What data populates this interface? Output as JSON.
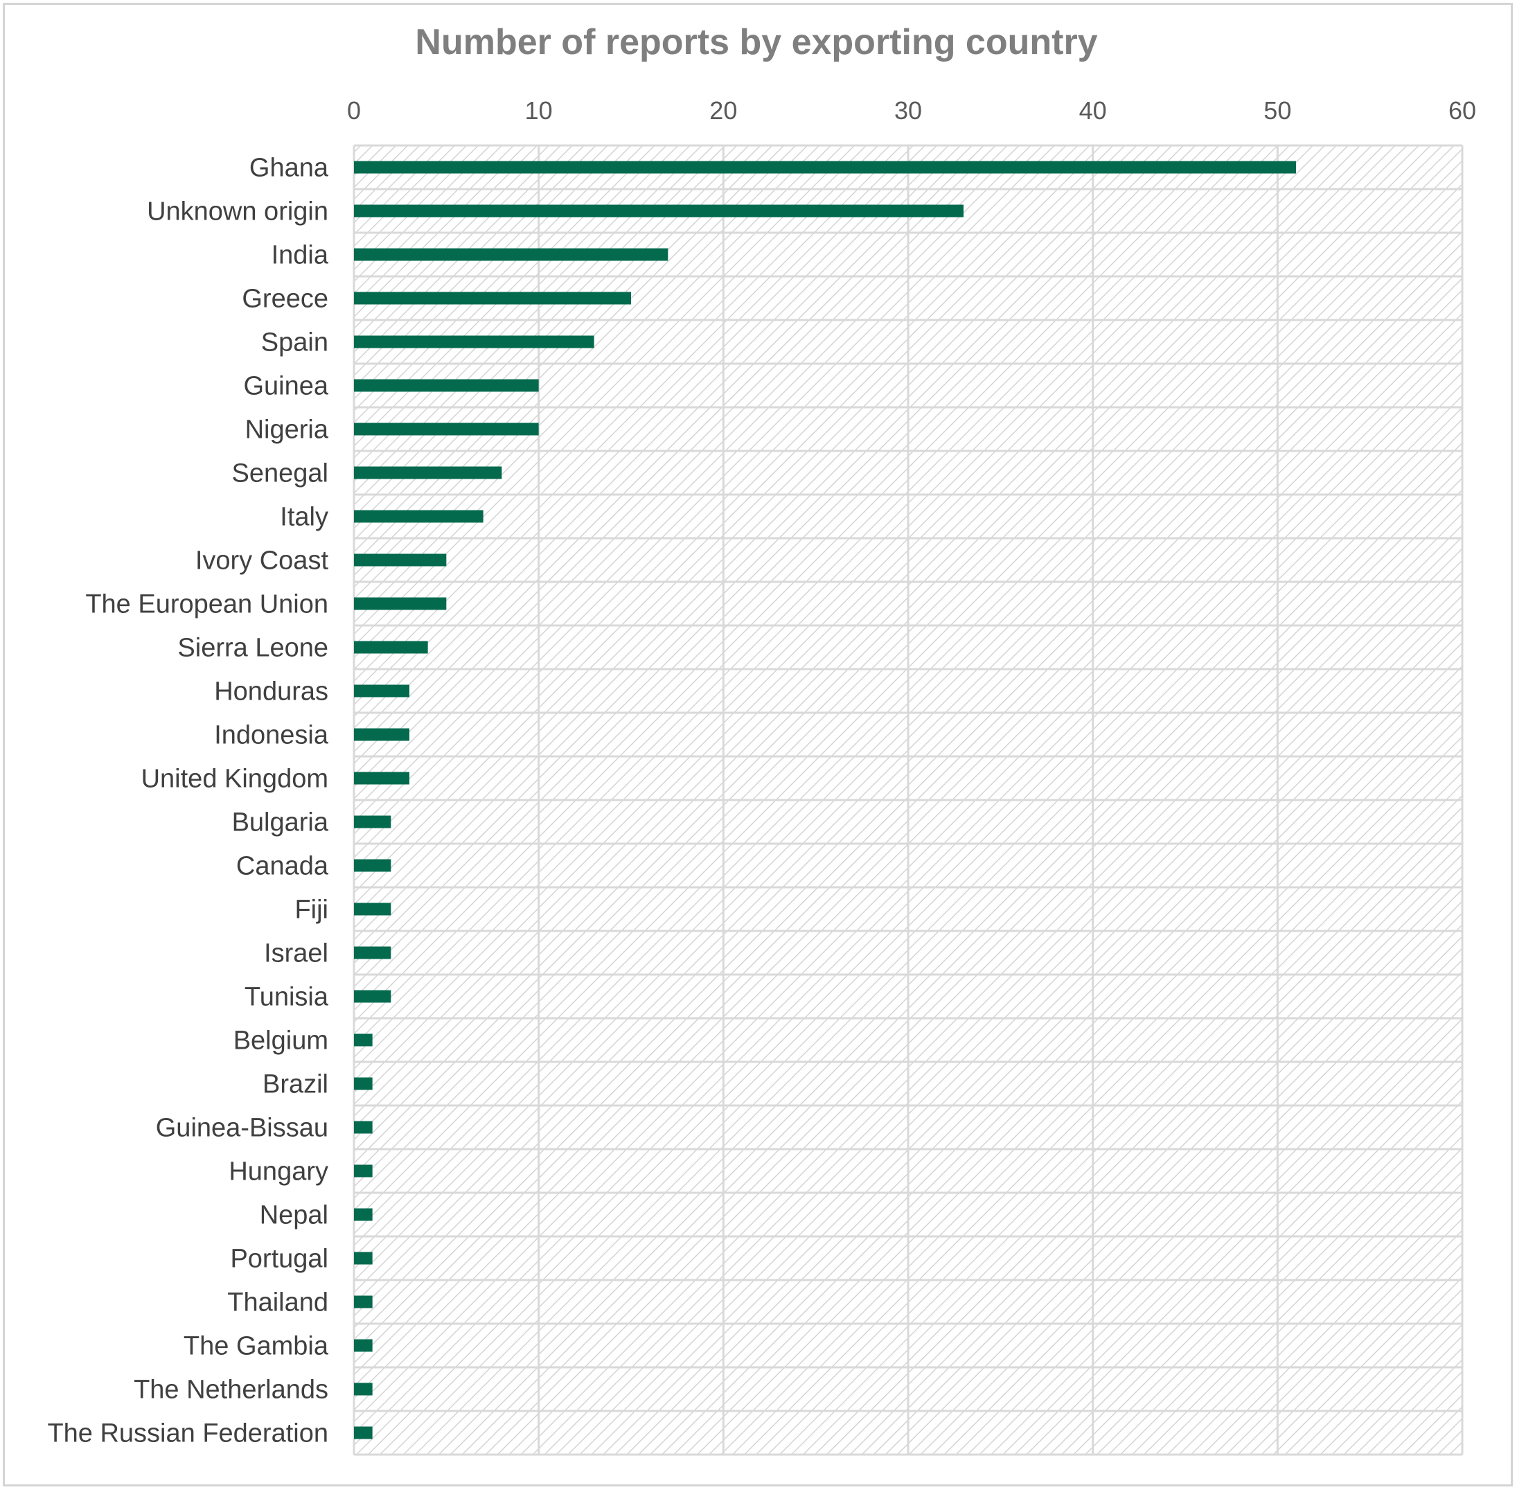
{
  "chart_data": {
    "type": "bar",
    "orientation": "horizontal",
    "title": "Number of reports by exporting country",
    "xlabel": "",
    "ylabel": "",
    "xlim": [
      0,
      60
    ],
    "x_ticks": [
      0,
      10,
      20,
      30,
      40,
      50,
      60
    ],
    "x_axis_position": "top",
    "grid": true,
    "legend": "none",
    "categories": [
      "Ghana",
      "Unknown origin",
      "India",
      "Greece",
      "Spain",
      "Guinea",
      "Nigeria",
      "Senegal",
      "Italy",
      "Ivory Coast",
      "The European Union",
      "Sierra Leone",
      "Honduras",
      "Indonesia",
      "United Kingdom",
      "Bulgaria",
      "Canada",
      "Fiji",
      "Israel",
      "Tunisia",
      "Belgium",
      "Brazil",
      "Guinea-Bissau",
      "Hungary",
      "Nepal",
      "Portugal",
      "Thailand",
      "The Gambia",
      "The Netherlands",
      "The Russian Federation"
    ],
    "values": [
      51,
      33,
      17,
      15,
      13,
      10,
      10,
      8,
      7,
      5,
      5,
      4,
      3,
      3,
      3,
      2,
      2,
      2,
      2,
      2,
      1,
      1,
      1,
      1,
      1,
      1,
      1,
      1,
      1,
      1
    ],
    "colors": {
      "bar": "#046a4e",
      "grid": "#d9d9d9",
      "hatch": "#d4d4d4",
      "title": "#7f7f7f",
      "tick_label": "#595959",
      "category_label": "#404040"
    }
  }
}
